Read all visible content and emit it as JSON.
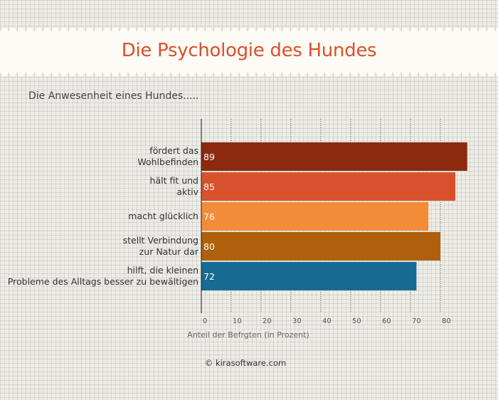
{
  "header": {
    "title": "Die Psychologie des Hundes"
  },
  "footer": {
    "credit": "© kirasoftware.com"
  },
  "chart_data": {
    "type": "bar",
    "orientation": "horizontal",
    "title": "",
    "subtitle": "Die Anwesenheit eines Hundes.....",
    "xlabel": "Anteil der Befrgten (in Prozent)",
    "ylabel": "",
    "xlim": [
      0,
      89
    ],
    "ticks": [
      0,
      10,
      20,
      30,
      40,
      50,
      60,
      70,
      80
    ],
    "grid": "vertical-dotted",
    "categories": [
      [
        "fördert das",
        "Wohlbefinden"
      ],
      [
        "hält fit und",
        "aktiv"
      ],
      [
        "macht glücklich"
      ],
      [
        "stellt Verbindung",
        "zur Natur dar"
      ],
      [
        "hilft, die kleinen",
        "Probleme des Alltags besser zu bewältigen"
      ]
    ],
    "values": [
      89,
      85,
      76,
      80,
      72
    ],
    "colors": [
      "#8b2a0e",
      "#d9512c",
      "#f28c38",
      "#b0600c",
      "#176b92"
    ]
  }
}
